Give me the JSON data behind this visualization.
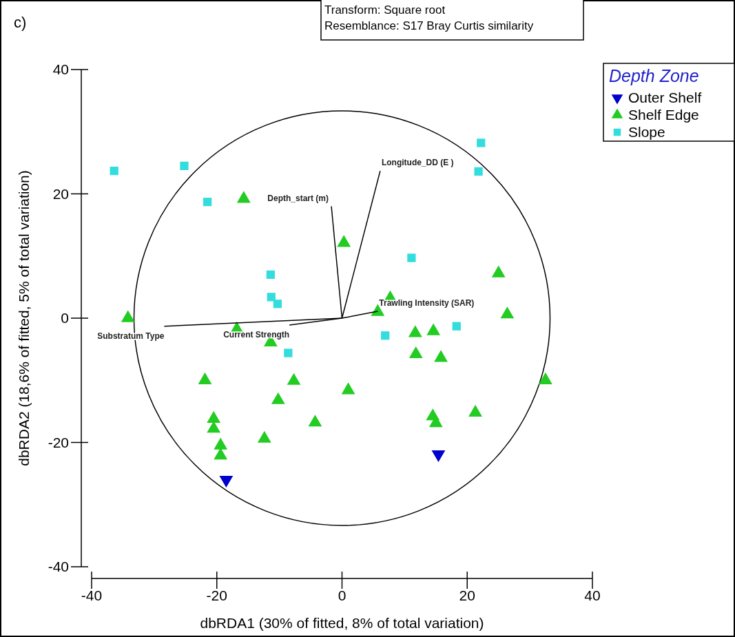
{
  "chart_data": {
    "type": "scatter",
    "xlabel": "dbRDA1 (30% of fitted, 8% of total variation)",
    "ylabel": "dbRDA2 (18,6% of fitted, 5% of total variation)",
    "legend_title": "Depth Zone",
    "legend": "top right",
    "xlim": [
      -40,
      40
    ],
    "ylim": [
      -40,
      40
    ],
    "xticks": [
      -40,
      -20,
      0,
      20,
      40
    ],
    "yticks": [
      -40,
      -20,
      0,
      20,
      40
    ],
    "grid": false,
    "annotations": [
      "c)",
      "Transform: Square root",
      "Resemblance: S17 Bray Curtis similarity",
      {
        "text": "Depth_start (m)",
        "x": -1.7,
        "y": 18
      },
      {
        "text": "Longitude_DD (E )",
        "x": 6.1,
        "y": 23.7
      },
      {
        "text": "Substratum Type",
        "x": -28.4,
        "y": -1.3
      },
      {
        "text": "Current Strength",
        "x": -8.4,
        "y": -1.1
      },
      {
        "text": "Trawling Intensity (SAR)",
        "x": 5.7,
        "y": 1.1
      }
    ],
    "series": [
      {
        "name": "Outer Shelf",
        "type": "scatter",
        "marker": "triangle-down",
        "color": "#0000cc",
        "x": [
          -18.5,
          15.4
        ],
        "values": [
          -26.0,
          -21.9
        ]
      },
      {
        "name": "Shelf Edge",
        "type": "scatter",
        "marker": "triangle",
        "color": "#22cc22",
        "x": [
          -15.7,
          0.3,
          25.0,
          7.7,
          5.7,
          -34.2,
          26.4,
          -16.8,
          -11.4,
          14.6,
          11.7,
          11.8,
          15.8,
          -21.9,
          -7.7,
          32.5,
          1.0,
          -10.2,
          -4.3,
          -20.5,
          -20.5,
          -12.4,
          -19.4,
          -19.4,
          21.3,
          14.5,
          15.0
        ],
        "values": [
          19.2,
          12.1,
          7.2,
          3.2,
          1.0,
          0.0,
          0.6,
          -1.8,
          -3.9,
          -2.1,
          -2.4,
          -5.8,
          -6.4,
          -10.0,
          -10.1,
          -10.0,
          -11.6,
          -13.2,
          -16.8,
          -16.2,
          -17.8,
          -19.4,
          -20.5,
          -22.1,
          -15.2,
          -15.8,
          -16.9
        ]
      },
      {
        "name": "Slope",
        "type": "scatter",
        "marker": "square",
        "color": "#33dddd",
        "x": [
          -36.4,
          -25.2,
          -21.5,
          -11.4,
          -11.3,
          -10.3,
          -8.6,
          6.9,
          11.1,
          18.3,
          22.2,
          21.8
        ],
        "values": [
          23.7,
          24.5,
          18.7,
          7.0,
          3.4,
          2.3,
          -5.6,
          -2.8,
          9.7,
          -1.3,
          28.2,
          23.6
        ]
      },
      {
        "type": "line",
        "color": "#000000",
        "x": [
          0,
          -1.7
        ],
        "values": [
          0,
          18
        ]
      },
      {
        "type": "line",
        "color": "#000000",
        "x": [
          0,
          6.1
        ],
        "values": [
          0,
          23.7
        ]
      },
      {
        "type": "line",
        "color": "#000000",
        "x": [
          0,
          -28.4
        ],
        "values": [
          0,
          -1.3
        ]
      },
      {
        "type": "line",
        "color": "#000000",
        "x": [
          0,
          -8.4
        ],
        "values": [
          0,
          -1.1
        ]
      },
      {
        "type": "line",
        "color": "#000000",
        "x": [
          0,
          5.7
        ],
        "values": [
          0,
          1.1
        ]
      }
    ]
  }
}
